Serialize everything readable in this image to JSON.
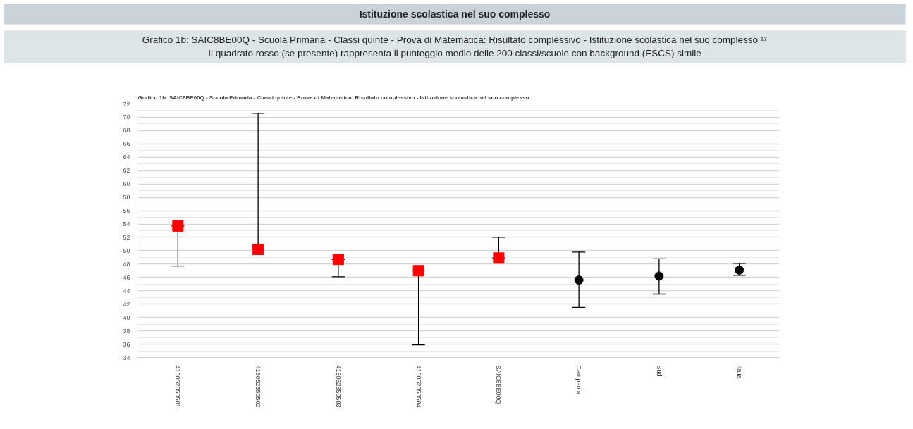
{
  "chart_data": {
    "type": "scatter",
    "title": "Istituzione scolastica nel suo complesso",
    "subtitle": "Grafico 1b: SAIC8BE00Q - Scuola Primaria - Classi quinte - Prova di Matematica: Risultato complessivo - Istituzione scolastica nel suo complesso ¹⁷\nIl quadrato rosso (se presente) rappresenta il punteggio medio delle 200 classi/scuole con background (ESCS) simile",
    "annotations": [
      "Grafico 1b: SAIC8BE00Q - Scuola Primaria - Classi quinte - Prova di Matematica: Risultato complessivo - Istituzione scolastica nel suo complesso"
    ],
    "categories": [
      "415052350501",
      "415052350502",
      "415052350503",
      "415052350504",
      "SAIC8BE00Q",
      "Campania",
      "Sud",
      "Italia"
    ],
    "series": [
      {
        "marker": "circle",
        "color": "#000000",
        "values": [
          null,
          null,
          null,
          null,
          null,
          45.6,
          46.2,
          47.1
        ],
        "errors": [
          null,
          null,
          null,
          null,
          null,
          [
            41.5,
            49.8
          ],
          [
            43.5,
            48.8
          ],
          [
            46.3,
            48.1
          ]
        ]
      },
      {
        "marker": "square",
        "color": "#ff0000",
        "values": [
          53.7,
          50.2,
          48.7,
          47.0,
          48.9,
          null,
          null,
          null
        ],
        "errors": [
          [
            47.7,
            53.7
          ],
          [
            50.2,
            70.6
          ],
          [
            46.1,
            48.7
          ],
          [
            35.9,
            47.0
          ],
          [
            48.9,
            52.0
          ],
          null,
          null,
          null
        ]
      }
    ],
    "ylim": [
      34,
      72
    ],
    "yticks": [
      34,
      36,
      38,
      40,
      42,
      44,
      46,
      48,
      50,
      52,
      54,
      56,
      58,
      60,
      62,
      64,
      66,
      68,
      70,
      72
    ],
    "grid": "y"
  }
}
